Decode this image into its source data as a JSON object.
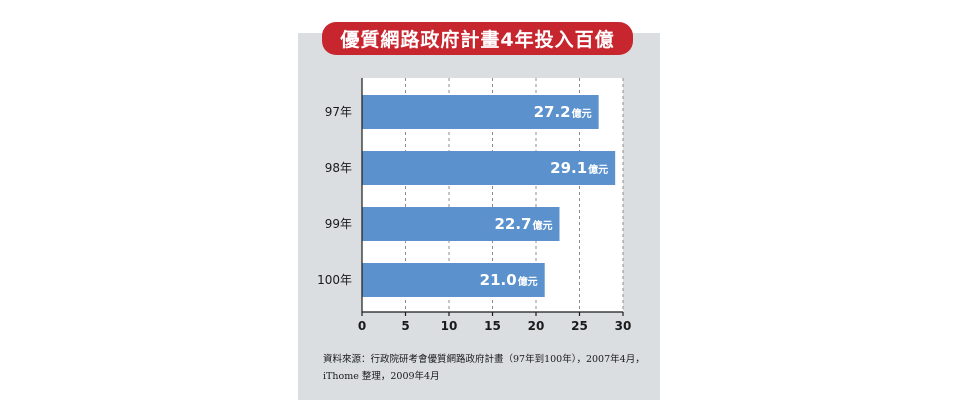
{
  "chart_data": {
    "type": "bar",
    "orientation": "horizontal",
    "title": "優質網路政府計畫4年投入百億",
    "categories": [
      "97年",
      "98年",
      "99年",
      "100年"
    ],
    "values": [
      27.2,
      29.1,
      22.7,
      21.0
    ],
    "data_labels": [
      "27.2",
      "29.1",
      "22.7",
      "21.0"
    ],
    "value_unit": "億元",
    "x_ticks": [
      0,
      5,
      10,
      15,
      20,
      25,
      30
    ],
    "xlim": [
      0,
      30
    ],
    "grid": true,
    "xlabel": "",
    "ylabel": ""
  },
  "source_note": [
    "資料來源：行政院研考會優質網路政府計畫（97年到100年），2007年4月，",
    "iThome 整理，2009年4月"
  ],
  "colors": {
    "title_banner": "#c8262f",
    "panel": "#dadee1",
    "plot_background": "#ffffff",
    "bar": "#5b91cd",
    "gridline": "#8c8c8c",
    "axis": "#1a1a1a",
    "text": "#1a1a1a",
    "data_label": "#ffffff"
  }
}
